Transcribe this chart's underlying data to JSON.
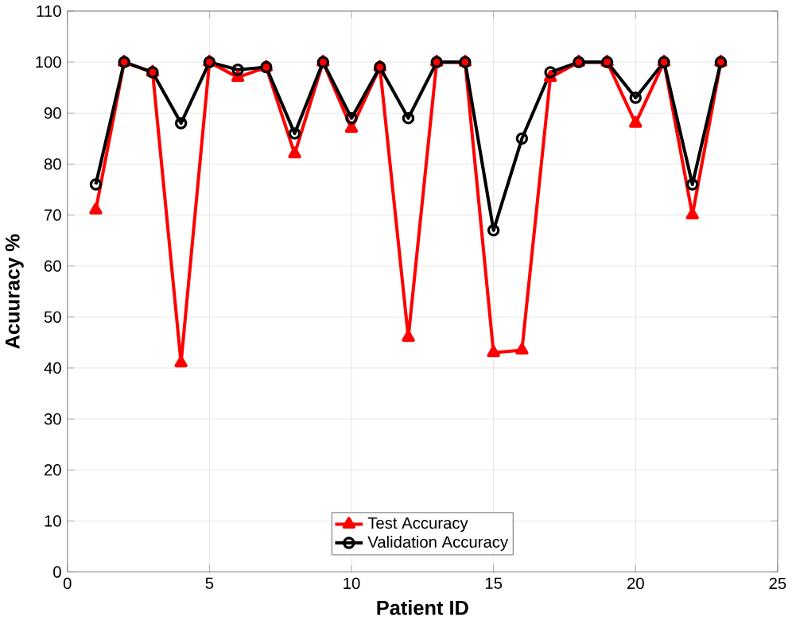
{
  "chart_data": {
    "type": "line",
    "xlabel": "Patient ID",
    "ylabel": "Acuuracy %",
    "x": [
      1,
      2,
      3,
      4,
      5,
      6,
      7,
      8,
      9,
      10,
      11,
      12,
      13,
      14,
      15,
      16,
      17,
      18,
      19,
      20,
      21,
      22,
      23
    ],
    "series": [
      {
        "name": "Test Accuracy",
        "color": "#ff0000",
        "marker": "triangle",
        "values": [
          71,
          100,
          98,
          41,
          100,
          97,
          99,
          82,
          100,
          87,
          99,
          46,
          100,
          100,
          43,
          43.5,
          97,
          100,
          100,
          88,
          100,
          70,
          100
        ]
      },
      {
        "name": "Validation Accuracy",
        "color": "#000000",
        "marker": "circle",
        "values": [
          76,
          100,
          98,
          88,
          100,
          98.5,
          99,
          86,
          100,
          89,
          99,
          89,
          100,
          100,
          67,
          85,
          98,
          100,
          100,
          93,
          100,
          76,
          100
        ]
      }
    ],
    "xlim": [
      0,
      25
    ],
    "xticks": [
      0,
      5,
      10,
      15,
      20,
      25
    ],
    "ylim": [
      0,
      110
    ],
    "yticks": [
      0,
      10,
      20,
      30,
      40,
      50,
      60,
      70,
      80,
      90,
      100,
      110
    ],
    "grid": true,
    "legend": "bottom",
    "line_style": "solid"
  }
}
